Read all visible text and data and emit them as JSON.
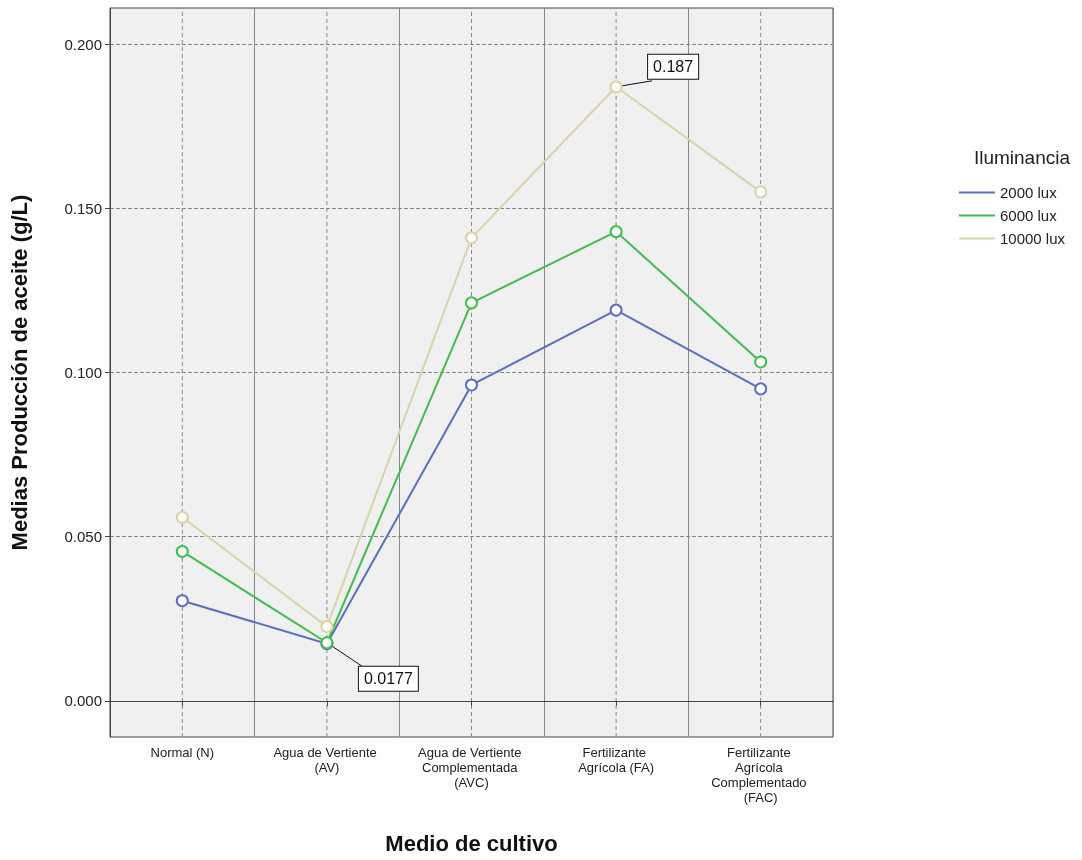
{
  "chart_data": {
    "type": "line",
    "xlabel": "Medio de cultivo",
    "ylabel": "Medias Producción de aceite (g/L)",
    "legend_title": "Iluminancia",
    "categories": [
      "Normal (N)",
      "Agua de Vertiente (AV)",
      "Agua de Vertiente Complementada (AVC)",
      "Fertilizante Agrícola (FA)",
      "Fertilizante Agrícola Complementado (FAC)"
    ],
    "series": [
      {
        "name": "2000 lux",
        "color": "#5b6fbf",
        "values": [
          0.0305,
          0.0174,
          0.0962,
          0.119,
          0.095
        ]
      },
      {
        "name": "6000 lux",
        "color": "#3fbf4a",
        "values": [
          0.0455,
          0.0177,
          0.1212,
          0.1429,
          0.1032
        ]
      },
      {
        "name": "10000 lux",
        "color": "#d9d3a6",
        "values": [
          0.0559,
          0.0226,
          0.141,
          0.187,
          0.155
        ]
      }
    ],
    "ylim": [
      -0.011,
      0.211
    ],
    "yticks": [
      {
        "value": 0,
        "label": "0.000"
      },
      {
        "value": 0.05,
        "label": "0.050"
      },
      {
        "value": 0.1,
        "label": "0.100"
      },
      {
        "value": 0.15,
        "label": "0.150"
      },
      {
        "value": 0.2,
        "label": "0.200"
      }
    ],
    "annotations": [
      {
        "text": "0.187",
        "x": "Fertilizante Agrícola (FA)",
        "y": 0.187
      },
      {
        "text": "0.0177",
        "x": "Agua de Vertiente (AV)",
        "y": 0.0177
      }
    ],
    "grid": true,
    "legend": "right",
    "marker": "circle",
    "line_style": "solid"
  }
}
